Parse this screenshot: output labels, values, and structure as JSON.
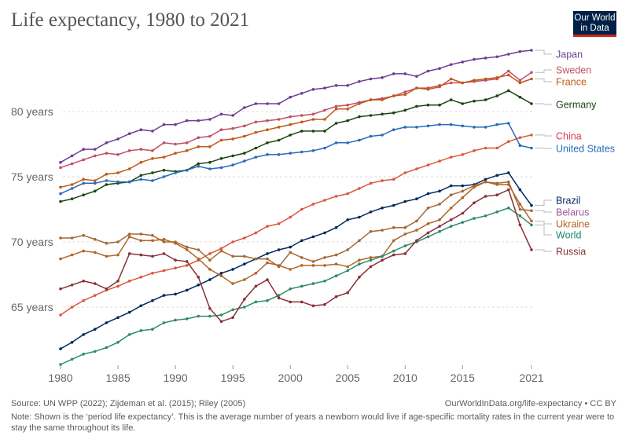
{
  "header": {
    "title": "Life expectancy, 1980 to 2021",
    "logo_line1": "Our World",
    "logo_line2": "in Data"
  },
  "footer": {
    "source": "Source: UN WPP (2022); Zijdeman et al. (2015); Riley (2005)",
    "url": "OurWorldInData.org/life-expectancy • CC BY",
    "note": "Note: Shown is the ‘period life expectancy’. This is the average number of years a newborn would live if age-specific mortality rates in the current year were to stay the same throughout its life."
  },
  "chart_data": {
    "type": "line",
    "title": "Life expectancy, 1980 to 2021",
    "xlabel": "",
    "ylabel": "",
    "xlim": [
      1980,
      2021
    ],
    "ylim": [
      60.5,
      85.5
    ],
    "grid": true,
    "legend": "right (inline labels at line ends)",
    "x_ticks": [
      1980,
      1985,
      1990,
      1995,
      2000,
      2005,
      2010,
      2015,
      2021
    ],
    "y_ticks": [
      {
        "value": 65,
        "label": "65 years"
      },
      {
        "value": 70,
        "label": "70 years"
      },
      {
        "value": 75,
        "label": "75 years"
      },
      {
        "value": 80,
        "label": "80 years"
      }
    ],
    "x": [
      1980,
      1981,
      1982,
      1983,
      1984,
      1985,
      1986,
      1987,
      1988,
      1989,
      1990,
      1991,
      1992,
      1993,
      1994,
      1995,
      1996,
      1997,
      1998,
      1999,
      2000,
      2001,
      2002,
      2003,
      2004,
      2005,
      2006,
      2007,
      2008,
      2009,
      2010,
      2011,
      2012,
      2013,
      2014,
      2015,
      2016,
      2017,
      2018,
      2019,
      2020,
      2021
    ],
    "series": [
      {
        "name": "Japan",
        "color": "#6d3e91",
        "values": [
          76.1,
          76.6,
          77.1,
          77.1,
          77.6,
          77.9,
          78.3,
          78.6,
          78.5,
          79.0,
          79.0,
          79.3,
          79.3,
          79.4,
          79.8,
          79.7,
          80.3,
          80.6,
          80.6,
          80.6,
          81.1,
          81.4,
          81.7,
          81.8,
          82.0,
          82.0,
          82.3,
          82.5,
          82.6,
          82.9,
          82.9,
          82.7,
          83.1,
          83.3,
          83.6,
          83.8,
          84.0,
          84.1,
          84.2,
          84.4,
          84.6,
          84.7
        ]
      },
      {
        "name": "Sweden",
        "color": "#c15065",
        "values": [
          75.7,
          76.0,
          76.3,
          76.6,
          76.8,
          76.7,
          77.0,
          77.1,
          77.0,
          77.6,
          77.5,
          77.6,
          78.0,
          78.1,
          78.6,
          78.7,
          78.9,
          79.2,
          79.3,
          79.4,
          79.6,
          79.7,
          79.8,
          80.1,
          80.4,
          80.5,
          80.7,
          80.9,
          81.0,
          81.2,
          81.5,
          81.8,
          81.8,
          82.0,
          82.2,
          82.2,
          82.3,
          82.4,
          82.5,
          83.1,
          82.4,
          83.0
        ]
      },
      {
        "name": "France",
        "color": "#c05917",
        "values": [
          74.2,
          74.4,
          74.8,
          74.7,
          75.2,
          75.3,
          75.6,
          76.1,
          76.4,
          76.5,
          76.8,
          77.0,
          77.3,
          77.3,
          77.8,
          77.9,
          78.1,
          78.4,
          78.6,
          78.8,
          79.0,
          79.2,
          79.4,
          79.4,
          80.2,
          80.2,
          80.6,
          80.9,
          80.9,
          81.2,
          81.3,
          81.8,
          81.7,
          81.9,
          82.5,
          82.2,
          82.4,
          82.5,
          82.6,
          82.8,
          82.2,
          82.5
        ]
      },
      {
        "name": "Germany",
        "color": "#18470f",
        "values": [
          73.1,
          73.3,
          73.6,
          73.9,
          74.4,
          74.5,
          74.6,
          75.1,
          75.3,
          75.5,
          75.4,
          75.5,
          76.0,
          76.1,
          76.4,
          76.6,
          76.8,
          77.2,
          77.6,
          77.8,
          78.2,
          78.5,
          78.5,
          78.5,
          79.1,
          79.3,
          79.6,
          79.7,
          79.8,
          79.9,
          80.1,
          80.4,
          80.5,
          80.5,
          80.9,
          80.6,
          80.8,
          80.9,
          81.2,
          81.6,
          81.1,
          80.6
        ]
      },
      {
        "name": "China",
        "color": "#d73c50",
        "colorLine": "#d8593d",
        "values": [
          64.4,
          65.0,
          65.5,
          65.9,
          66.3,
          66.6,
          67.0,
          67.3,
          67.6,
          67.8,
          68.0,
          68.2,
          68.6,
          69.1,
          69.5,
          70.0,
          70.3,
          70.7,
          71.2,
          71.4,
          71.9,
          72.5,
          72.9,
          73.2,
          73.5,
          73.7,
          74.1,
          74.5,
          74.7,
          74.8,
          75.3,
          75.6,
          75.9,
          76.2,
          76.5,
          76.7,
          77.0,
          77.2,
          77.2,
          77.7,
          78.0,
          78.2
        ]
      },
      {
        "name": "United States",
        "color": "#286bbb",
        "values": [
          73.7,
          74.1,
          74.5,
          74.5,
          74.7,
          74.6,
          74.6,
          74.8,
          74.7,
          75.0,
          75.3,
          75.5,
          75.8,
          75.6,
          75.7,
          75.9,
          76.2,
          76.5,
          76.7,
          76.7,
          76.8,
          76.9,
          77.0,
          77.2,
          77.6,
          77.6,
          77.8,
          78.1,
          78.2,
          78.6,
          78.8,
          78.8,
          78.9,
          79.0,
          79.0,
          78.9,
          78.8,
          78.8,
          79.0,
          79.1,
          77.4,
          77.2
        ]
      },
      {
        "name": "Brazil",
        "color": "#00295b",
        "values": [
          61.8,
          62.3,
          62.9,
          63.3,
          63.8,
          64.2,
          64.6,
          65.1,
          65.5,
          65.9,
          66.0,
          66.3,
          66.7,
          67.1,
          67.6,
          67.9,
          68.3,
          68.7,
          69.1,
          69.4,
          69.6,
          70.1,
          70.4,
          70.7,
          71.1,
          71.7,
          71.9,
          72.3,
          72.6,
          72.8,
          73.1,
          73.3,
          73.7,
          73.9,
          74.3,
          74.3,
          74.4,
          74.8,
          75.1,
          75.3,
          74.0,
          72.8
        ]
      },
      {
        "name": "Belarus",
        "color": "#a2559c",
        "colorLine": "#a46936",
        "values": [
          70.3,
          70.3,
          70.5,
          70.2,
          69.9,
          70.0,
          70.6,
          70.6,
          70.5,
          70.0,
          70.0,
          69.6,
          69.4,
          68.6,
          69.3,
          68.9,
          68.9,
          68.7,
          68.7,
          68.1,
          69.2,
          68.8,
          68.5,
          68.8,
          69.0,
          69.4,
          70.1,
          70.8,
          70.9,
          71.1,
          71.1,
          71.6,
          72.6,
          72.9,
          73.6,
          73.9,
          74.3,
          74.6,
          74.5,
          74.6,
          72.5,
          72.4
        ]
      },
      {
        "name": "Ukraine",
        "color": "#b06526",
        "values": [
          68.7,
          69.0,
          69.3,
          69.2,
          68.9,
          69.0,
          70.4,
          70.1,
          70.1,
          70.2,
          69.9,
          69.4,
          68.7,
          67.9,
          67.4,
          66.8,
          67.1,
          67.6,
          68.4,
          68.2,
          67.9,
          68.2,
          68.2,
          68.2,
          68.3,
          68.1,
          68.6,
          68.8,
          68.9,
          70.1,
          70.6,
          70.9,
          71.4,
          71.7,
          72.6,
          73.4,
          74.2,
          74.6,
          74.4,
          74.4,
          72.9,
          71.6
        ]
      },
      {
        "name": "World",
        "color": "#18846a",
        "colorLine": "#2d8a6b",
        "values": [
          60.6,
          61.0,
          61.4,
          61.6,
          61.9,
          62.3,
          62.9,
          63.2,
          63.3,
          63.8,
          64.0,
          64.1,
          64.3,
          64.3,
          64.4,
          64.8,
          65.0,
          65.4,
          65.5,
          65.9,
          66.4,
          66.6,
          66.8,
          67.0,
          67.4,
          67.8,
          68.3,
          68.6,
          68.9,
          69.3,
          69.7,
          70.0,
          70.4,
          70.8,
          71.2,
          71.5,
          71.8,
          72.0,
          72.3,
          72.6,
          72.0,
          71.3
        ]
      },
      {
        "name": "Russia",
        "color": "#883039",
        "values": [
          66.4,
          66.7,
          67.0,
          66.8,
          66.4,
          67.0,
          69.1,
          69.0,
          68.9,
          69.1,
          68.6,
          68.5,
          67.3,
          64.9,
          63.9,
          64.2,
          65.6,
          66.6,
          67.1,
          65.7,
          65.4,
          65.4,
          65.1,
          65.2,
          65.8,
          66.1,
          67.3,
          68.1,
          68.6,
          69.0,
          69.1,
          70.1,
          70.7,
          71.2,
          71.7,
          72.2,
          73.0,
          73.5,
          73.6,
          74.0,
          71.3,
          69.4
        ]
      }
    ]
  }
}
